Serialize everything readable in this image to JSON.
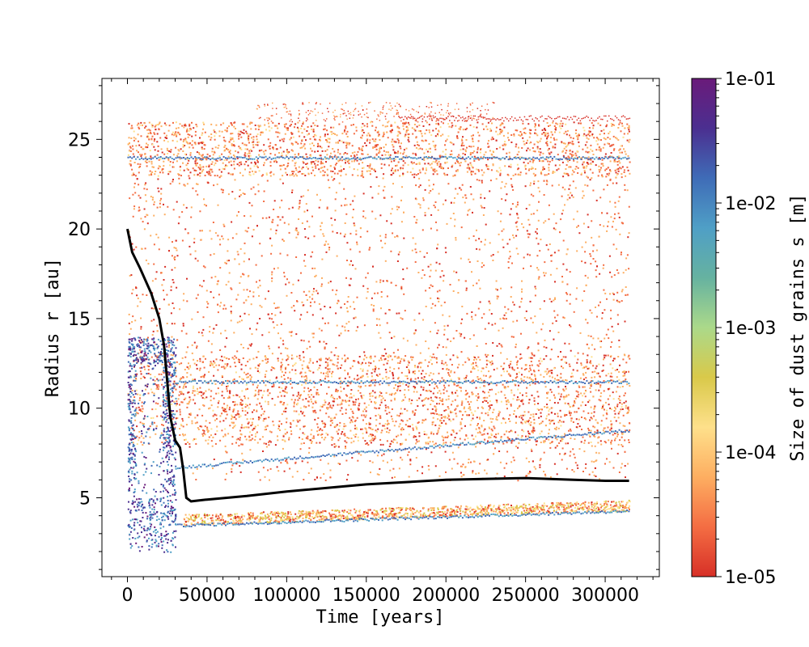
{
  "chart_data": {
    "type": "scatter",
    "title": "",
    "xlabel": "Time [years]",
    "ylabel": "Radius r [au]",
    "xlim": [
      -16000,
      334000
    ],
    "ylim": [
      0.6,
      28.4
    ],
    "xticks": [
      0,
      50000,
      100000,
      150000,
      200000,
      250000,
      300000
    ],
    "xtick_labels": [
      "0",
      "50000",
      "100000",
      "150000",
      "200000",
      "250000",
      "300000"
    ],
    "yticks": [
      5,
      10,
      15,
      20,
      25
    ],
    "ytick_labels": [
      "5",
      "10",
      "15",
      "20",
      "25"
    ],
    "grid": false,
    "legend": "none",
    "colorbar": {
      "label": "Size of dust grains s [m]",
      "scale": "log",
      "range": [
        1e-05,
        0.1
      ],
      "ticks": [
        1e-05,
        0.0001,
        0.001,
        0.01,
        0.1
      ],
      "tick_labels": [
        "1e-05",
        "1e-04",
        "1e-03",
        "1e-02",
        "1e-01"
      ],
      "colormap": [
        "#d73027",
        "#f46d43",
        "#fdae61",
        "#fee08b",
        "#d9c94a",
        "#abd98a",
        "#66b2a0",
        "#4f9fc6",
        "#3f6cb7",
        "#4b2f90",
        "#6a1b7a"
      ]
    },
    "colors": {
      "tracer": "#000000",
      "dust_small": "#e8542a",
      "dust_large": "#3e5fae"
    },
    "series": [
      {
        "name": "",
        "color": "#000000",
        "x": [
          0,
          3000,
          8000,
          15000,
          20000,
          23000,
          25000,
          27000,
          30000,
          33000,
          35000,
          37000,
          40000,
          50000,
          75000,
          100000,
          150000,
          200000,
          250000,
          280000,
          300000,
          315000
        ],
        "y": [
          20.0,
          18.7,
          17.8,
          16.4,
          15.0,
          13.5,
          11.5,
          9.5,
          8.2,
          7.8,
          6.6,
          5.0,
          4.8,
          4.9,
          5.1,
          5.35,
          5.75,
          6.0,
          6.1,
          6.0,
          5.95,
          5.95
        ]
      }
    ],
    "dust_features": {
      "main_band_r": [
        6.0,
        26.0
      ],
      "dense_band_r": [
        8.0,
        13.0
      ],
      "dense_ring_r": [
        23.0,
        26.0
      ],
      "inner_ring_r": [
        3.8,
        4.8
      ],
      "large_grain_lanes_r": [
        24.0,
        11.5,
        8.8,
        4.3
      ],
      "outer_stray_track_r": 26.2,
      "early_inner_plume_r": [
        2.0,
        14.0
      ],
      "end_time": 315000
    }
  }
}
